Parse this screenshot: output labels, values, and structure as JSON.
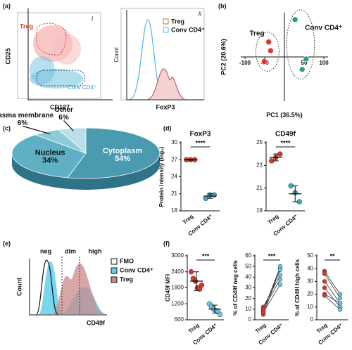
{
  "panel_labels": [
    "(a)",
    "(b)",
    "(c)",
    "(d)",
    "(e)",
    "(f)"
  ],
  "flow_plot": {
    "label": "i",
    "gates": [
      "Treg",
      "Conv CD4⁺"
    ],
    "y_label": "CD25",
    "x_label": "CD127"
  },
  "foxp3_histogram": {
    "label": "ii",
    "legend": [
      "Treg",
      "Conv CD4⁺"
    ],
    "y_label": "Count",
    "x_label": "FoxP3"
  },
  "cd49f_histogram": {
    "gates": [
      "neg",
      "dim",
      "high"
    ],
    "legend": [
      "FMO",
      "Conv CD4⁺",
      "Treg"
    ],
    "y_label": "Count",
    "x_label": "CD49f"
  },
  "chart_data": [
    {
      "type": "scatter",
      "x_label": "PC1 (36.5%)",
      "y_label": "PC2 (20.6%)",
      "xlim": [
        -100,
        100
      ],
      "ylim": [
        -100,
        100
      ],
      "xticks": [
        -100,
        -50,
        50,
        100
      ],
      "series": [
        {
          "name": "Treg",
          "color": "#d9372b",
          "x": [
            -40,
            -35,
            -51
          ],
          "values": [
            36,
            15,
            -11
          ]
        },
        {
          "name": "Conv CD4⁺",
          "color": "#2a9d8f",
          "x": [
            27,
            55,
            45
          ],
          "values": [
            90,
            -5,
            -30
          ]
        }
      ]
    },
    {
      "type": "pie",
      "categories": [
        "Cytoplasm",
        "Nucleus",
        "Plasma membrane",
        "Other"
      ],
      "values": [
        54,
        34,
        6,
        6
      ],
      "value_labels": [
        "54%",
        "34%",
        "6%",
        "6%"
      ],
      "colors": [
        "#4a9bb0",
        "#5fb0c4",
        "#8ccbd8",
        "#b9e0e8"
      ]
    },
    {
      "type": "dot",
      "title": "FoxP3",
      "y_label": "Protein intensity (log₂)",
      "categories": [
        "Treg",
        "Conv CD4⁺"
      ],
      "ylim": [
        18,
        30
      ],
      "yticks": [
        18,
        21,
        24,
        27,
        30
      ],
      "values": [
        [
          27,
          27,
          27
        ],
        [
          20.2,
          20.8,
          20.8
        ]
      ],
      "means": [
        27,
        20.6
      ],
      "errors": [
        0.1,
        0.4
      ],
      "colors": [
        "#d9372b",
        "#3ba9c0"
      ],
      "annotation": "****"
    },
    {
      "type": "dot",
      "title": "CD49f",
      "categories": [
        "Treg",
        "Conv CD4⁺"
      ],
      "ylim": [
        19,
        25
      ],
      "yticks": [
        19,
        21,
        23,
        25
      ],
      "values": [
        [
          23.4,
          23.7,
          24.0
        ],
        [
          21.2,
          20.6,
          19.8
        ]
      ],
      "means": [
        23.7,
        20.5
      ],
      "errors": [
        0.3,
        0.7
      ],
      "colors": [
        "#d9372b",
        "#3ba9c0"
      ],
      "annotation": "****"
    },
    {
      "type": "dot",
      "y_label": "CD49f MFI",
      "categories": [
        "Treg",
        "Conv CD4⁺"
      ],
      "ylim": [
        600,
        3000
      ],
      "yticks": [
        600,
        1200,
        1800,
        2400,
        3000
      ],
      "values": [
        [
          2400,
          2150,
          2050,
          1800,
          1750,
          1900
        ],
        [
          1200,
          1100,
          1000,
          950,
          900,
          800
        ]
      ],
      "means": [
        2050,
        1000
      ],
      "errors": [
        350,
        150
      ],
      "colors": [
        "#d9372b",
        "#6cc4e4"
      ],
      "annotation": "***"
    },
    {
      "type": "paired",
      "y_label": "% of CD49f neg cells",
      "categories": [
        "Treg",
        "Conv CD4⁺"
      ],
      "ylim": [
        0,
        60
      ],
      "yticks": [
        0,
        10,
        20,
        30,
        40,
        50,
        60
      ],
      "values": [
        [
          5,
          8,
          10,
          12,
          10,
          7
        ],
        [
          48,
          50,
          47,
          42,
          38,
          33
        ]
      ],
      "colors": [
        "#d9372b",
        "#6cc4e4"
      ],
      "annotation": "***"
    },
    {
      "type": "paired",
      "y_label": "% of CD49f high cells",
      "categories": [
        "Treg",
        "Conv CD4⁺"
      ],
      "ylim": [
        0,
        50
      ],
      "yticks": [
        0,
        10,
        20,
        30,
        40,
        50
      ],
      "values": [
        [
          38,
          36,
          30,
          25,
          20,
          19
        ],
        [
          20,
          17,
          13,
          10,
          13,
          8
        ]
      ],
      "colors": [
        "#d9372b",
        "#6cc4e4"
      ],
      "annotation": "**"
    }
  ]
}
